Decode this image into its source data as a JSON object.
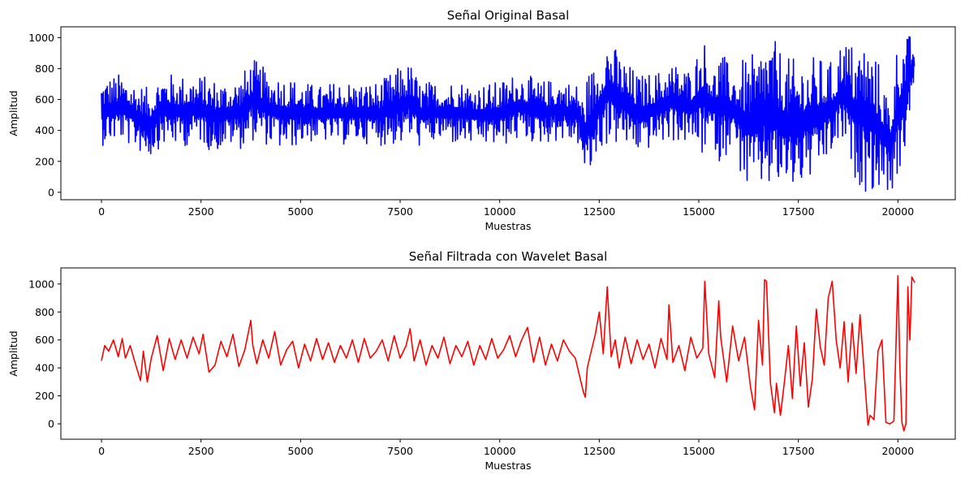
{
  "chart_data": [
    {
      "type": "line",
      "title": "Señal Original Basal",
      "xlabel": "Muestras",
      "ylabel": "Amplitud",
      "xlim": [
        -1020,
        21440
      ],
      "ylim": [
        -48,
        1070
      ],
      "xticks": [
        0,
        2500,
        5000,
        7500,
        10000,
        12500,
        15000,
        17500,
        20000
      ],
      "xtick_labels": [
        "0",
        "2500",
        "5000",
        "7500",
        "10000",
        "12500",
        "15000",
        "17500",
        "20000"
      ],
      "yticks": [
        0,
        200,
        400,
        600,
        800,
        1000
      ],
      "ytick_labels": [
        "0",
        "200",
        "400",
        "600",
        "800",
        "1000"
      ],
      "grid": false,
      "series": [
        {
          "color": "#0000ff",
          "x_range": [
            0,
            20420
          ],
          "points": 20421,
          "envelope": [
            [
              0,
              300,
              750
            ],
            [
              500,
              330,
              770
            ],
            [
              1000,
              250,
              700
            ],
            [
              1200,
              215,
              670
            ],
            [
              1500,
              300,
              780
            ],
            [
              2000,
              290,
              760
            ],
            [
              2500,
              320,
              760
            ],
            [
              2800,
              250,
              740
            ],
            [
              3200,
              300,
              720
            ],
            [
              3500,
              280,
              760
            ],
            [
              3800,
              330,
              870
            ],
            [
              4200,
              300,
              780
            ],
            [
              4600,
              260,
              760
            ],
            [
              5000,
              310,
              720
            ],
            [
              5500,
              330,
              690
            ],
            [
              6000,
              300,
              730
            ],
            [
              6500,
              320,
              710
            ],
            [
              7000,
              300,
              720
            ],
            [
              7500,
              300,
              820
            ],
            [
              7750,
              330,
              840
            ],
            [
              8000,
              290,
              720
            ],
            [
              8500,
              320,
              720
            ],
            [
              9000,
              300,
              730
            ],
            [
              9500,
              300,
              700
            ],
            [
              10000,
              290,
              720
            ],
            [
              10500,
              330,
              790
            ],
            [
              11000,
              310,
              720
            ],
            [
              11500,
              330,
              740
            ],
            [
              12000,
              300,
              700
            ],
            [
              12100,
              120,
              620
            ],
            [
              12200,
              40,
              780
            ],
            [
              12500,
              250,
              860
            ],
            [
              12700,
              300,
              1020
            ],
            [
              13000,
              300,
              900
            ],
            [
              13500,
              250,
              760
            ],
            [
              14000,
              300,
              790
            ],
            [
              14300,
              330,
              850
            ],
            [
              14800,
              300,
              800
            ],
            [
              15100,
              220,
              1020
            ],
            [
              15400,
              300,
              800
            ],
            [
              15500,
              150,
              960
            ],
            [
              15800,
              300,
              800
            ],
            [
              16200,
              0,
              880
            ],
            [
              16500,
              0,
              900
            ],
            [
              16600,
              0,
              1020
            ],
            [
              16800,
              0,
              1020
            ],
            [
              17000,
              0,
              950
            ],
            [
              17300,
              0,
              860
            ],
            [
              17600,
              30,
              880
            ],
            [
              18000,
              100,
              880
            ],
            [
              18400,
              250,
              840
            ],
            [
              18600,
              300,
              1020
            ],
            [
              18900,
              80,
              960
            ],
            [
              19200,
              0,
              1000
            ],
            [
              19500,
              0,
              860
            ],
            [
              19800,
              0,
              600
            ],
            [
              20000,
              0,
              1020
            ],
            [
              20200,
              300,
              1020
            ],
            [
              20420,
              680,
              1020
            ]
          ]
        }
      ]
    },
    {
      "type": "line",
      "title": "Señal Filtrada con Wavelet Basal",
      "xlabel": "Muestras",
      "ylabel": "Amplitud",
      "xlim": [
        -1020,
        21440
      ],
      "ylim": [
        -110,
        1115
      ],
      "xticks": [
        0,
        2500,
        5000,
        7500,
        10000,
        12500,
        15000,
        17500,
        20000
      ],
      "xtick_labels": [
        "0",
        "2500",
        "5000",
        "7500",
        "10000",
        "12500",
        "15000",
        "17500",
        "20000"
      ],
      "yticks": [
        0,
        200,
        400,
        600,
        800,
        1000
      ],
      "ytick_labels": [
        "0",
        "200",
        "400",
        "600",
        "800",
        "1000"
      ],
      "grid": false,
      "series": [
        {
          "color": "#ff0000",
          "x": [
            0,
            80,
            180,
            300,
            420,
            520,
            600,
            720,
            850,
            980,
            1050,
            1150,
            1250,
            1400,
            1550,
            1700,
            1850,
            2000,
            2150,
            2300,
            2450,
            2550,
            2700,
            2850,
            3000,
            3150,
            3300,
            3450,
            3600,
            3750,
            3800,
            3900,
            4050,
            4200,
            4350,
            4500,
            4650,
            4800,
            4950,
            5100,
            5250,
            5400,
            5550,
            5700,
            5850,
            6000,
            6150,
            6300,
            6450,
            6600,
            6750,
            6900,
            7050,
            7200,
            7350,
            7500,
            7650,
            7750,
            7850,
            8000,
            8150,
            8300,
            8450,
            8600,
            8750,
            8900,
            9050,
            9200,
            9350,
            9500,
            9650,
            9800,
            9950,
            10100,
            10250,
            10400,
            10550,
            10700,
            10850,
            11000,
            11150,
            11300,
            11450,
            11600,
            11750,
            11900,
            12000,
            12100,
            12150,
            12200,
            12300,
            12400,
            12500,
            12600,
            12700,
            12800,
            12900,
            13000,
            13150,
            13300,
            13450,
            13600,
            13750,
            13900,
            14050,
            14200,
            14250,
            14350,
            14500,
            14650,
            14800,
            14950,
            15100,
            15150,
            15250,
            15400,
            15500,
            15550,
            15700,
            15850,
            16000,
            16150,
            16300,
            16400,
            16500,
            16600,
            16650,
            16700,
            16800,
            16900,
            16950,
            17050,
            17150,
            17250,
            17350,
            17450,
            17550,
            17650,
            17750,
            17850,
            17950,
            18050,
            18150,
            18250,
            18350,
            18450,
            18550,
            18650,
            18750,
            18850,
            18950,
            19050,
            19150,
            19250,
            19300,
            19400,
            19500,
            19600,
            19700,
            19800,
            19900,
            20000,
            20050,
            20100,
            20150,
            20200,
            20250,
            20300,
            20350,
            20420
          ],
          "values": [
            450,
            560,
            520,
            600,
            480,
            610,
            470,
            560,
            430,
            310,
            520,
            300,
            470,
            630,
            380,
            610,
            460,
            600,
            470,
            620,
            500,
            640,
            370,
            420,
            590,
            480,
            640,
            410,
            530,
            740,
            560,
            430,
            600,
            470,
            660,
            420,
            530,
            590,
            400,
            570,
            450,
            610,
            460,
            580,
            440,
            560,
            470,
            600,
            440,
            610,
            470,
            520,
            600,
            450,
            630,
            470,
            560,
            680,
            450,
            600,
            420,
            560,
            470,
            620,
            430,
            560,
            480,
            590,
            420,
            560,
            460,
            610,
            470,
            530,
            630,
            480,
            600,
            690,
            440,
            620,
            420,
            570,
            450,
            600,
            520,
            470,
            350,
            230,
            190,
            400,
            520,
            640,
            800,
            500,
            980,
            480,
            600,
            400,
            620,
            430,
            600,
            460,
            570,
            400,
            610,
            460,
            850,
            440,
            560,
            380,
            620,
            470,
            540,
            1020,
            500,
            330,
            880,
            620,
            300,
            700,
            450,
            620,
            260,
            100,
            740,
            420,
            1030,
            1020,
            290,
            80,
            290,
            60,
            300,
            560,
            180,
            700,
            270,
            580,
            120,
            320,
            820,
            550,
            420,
            900,
            1020,
            600,
            400,
            730,
            300,
            720,
            360,
            780,
            380,
            -10,
            60,
            30,
            520,
            600,
            10,
            0,
            20,
            1060,
            400,
            10,
            -50,
            0,
            980,
            600,
            1050,
            1010
          ]
        }
      ]
    }
  ]
}
